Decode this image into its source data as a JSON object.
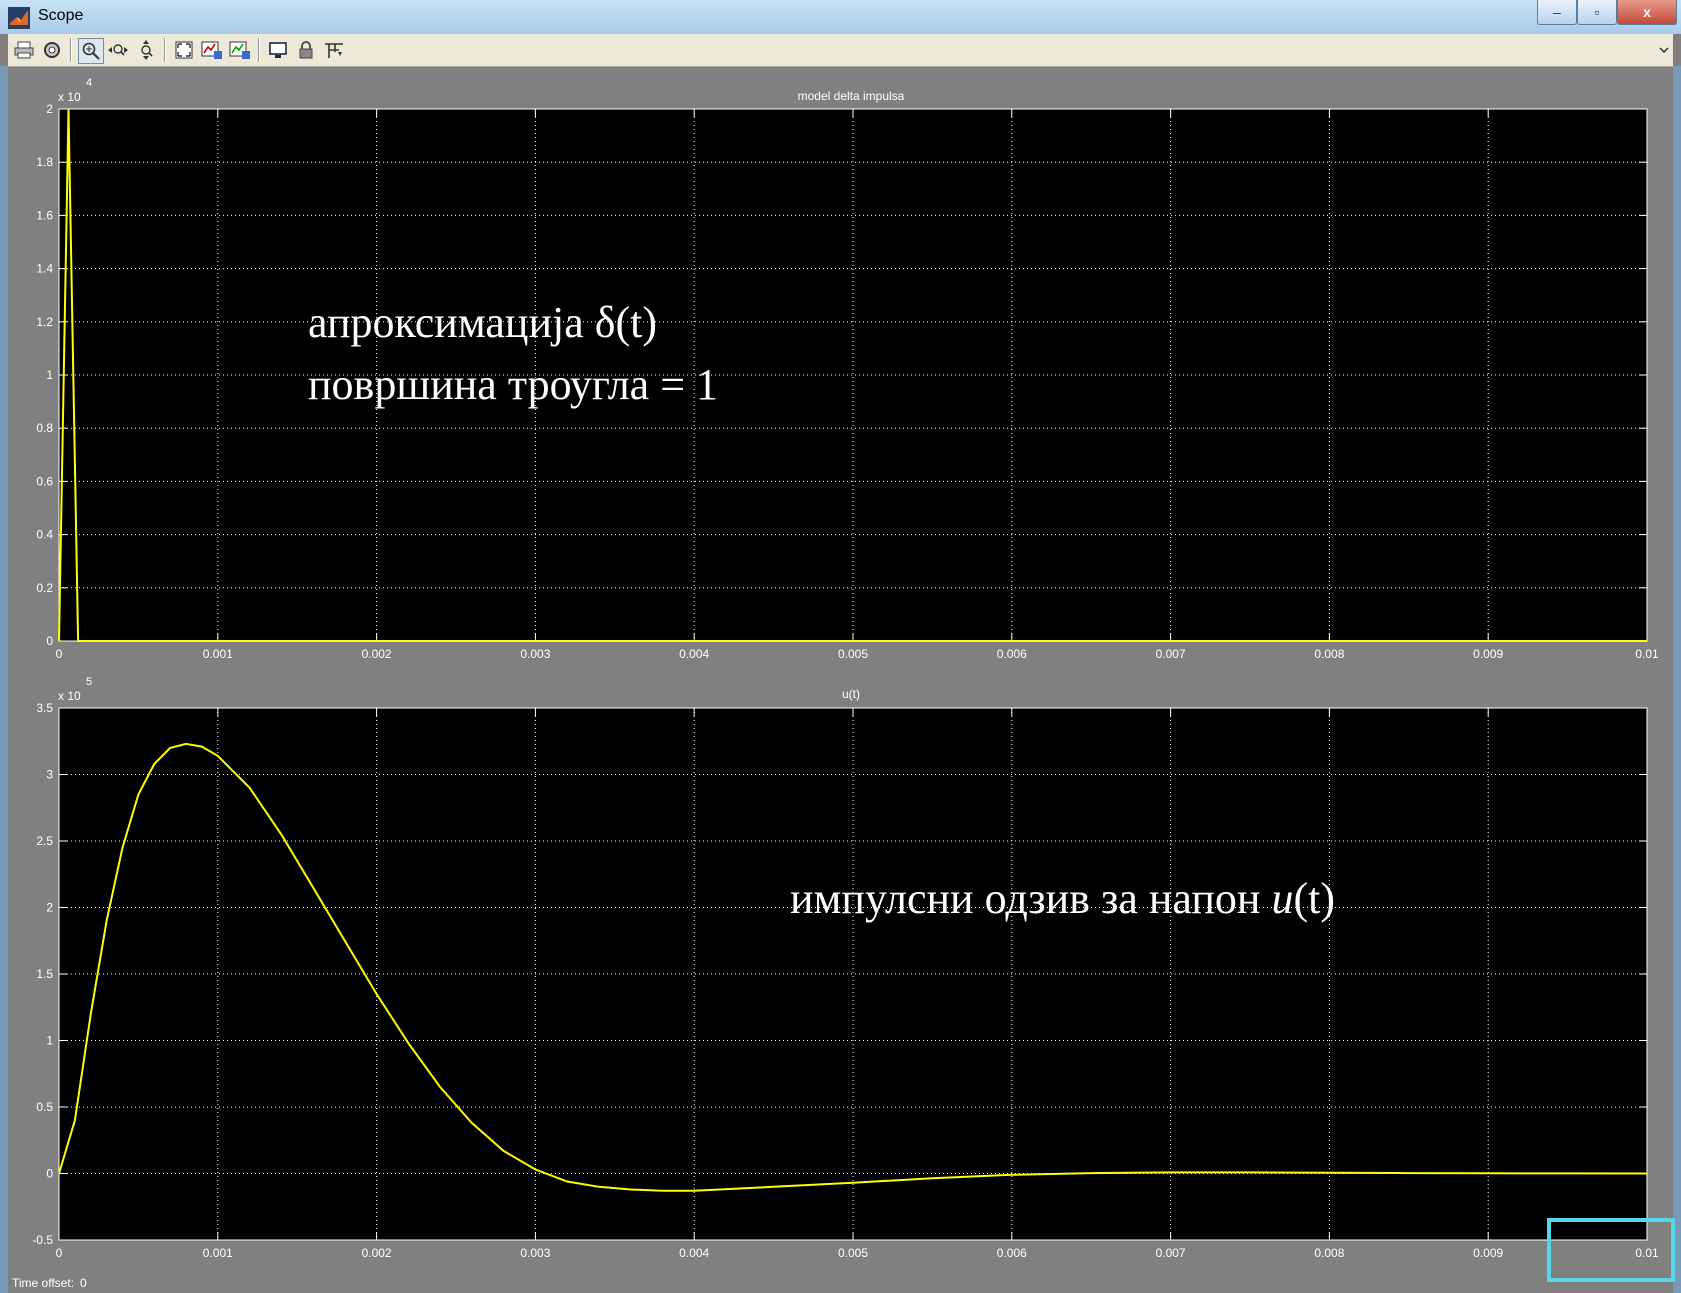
{
  "window": {
    "title": "Scope",
    "title_color": "#000000",
    "min": "–",
    "max": "▫",
    "close": "x"
  },
  "toolbar": {
    "icons": [
      "print-icon",
      "parameters-icon",
      "zoom-icon",
      "zoom-x-icon",
      "zoom-y-icon",
      "autoscale-icon",
      "save-axes-icon",
      "restore-axes-icon",
      "floating-scope-icon",
      "lock-axes-icon",
      "signal-selector-icon"
    ]
  },
  "plots": [
    {
      "title": "model delta impulsa",
      "exponent_base": "x 10",
      "exponent": "4",
      "xticks": [
        "0",
        "0.001",
        "0.002",
        "0.003",
        "0.004",
        "0.005",
        "0.006",
        "0.007",
        "0.008",
        "0.009",
        "0.01"
      ],
      "yticks": [
        "0",
        "0.2",
        "0.4",
        "0.6",
        "0.8",
        "1",
        "1.2",
        "1.4",
        "1.6",
        "1.8",
        "2"
      ],
      "annotation_line1": "апроксимација δ(t)",
      "annotation_line2": "површина троугла = 1"
    },
    {
      "title": "u(t)",
      "exponent_base": "x 10",
      "exponent": "5",
      "xticks": [
        "0",
        "0.001",
        "0.002",
        "0.003",
        "0.004",
        "0.005",
        "0.006",
        "0.007",
        "0.008",
        "0.009",
        "0.01"
      ],
      "yticks": [
        "-0.5",
        "0",
        "0.5",
        "1",
        "1.5",
        "2",
        "2.5",
        "3",
        "3.5"
      ],
      "annotation_prefix": "импулсни одзив за напон ",
      "annotation_var": "u",
      "annotation_suffix": "(t)"
    }
  ],
  "chart_data": [
    {
      "type": "line",
      "title": "model delta impulsa",
      "x": [
        0,
        6e-05,
        0.00012
      ],
      "y": [
        0,
        20000,
        0
      ],
      "xlim": [
        0,
        0.01
      ],
      "ylim": [
        0,
        20000
      ],
      "y_scale_factor": "x 10^4",
      "grid": true,
      "line_color": "#ffff00",
      "background": "#000000"
    },
    {
      "type": "line",
      "title": "u(t)",
      "x": [
        0,
        0.0001,
        0.0002,
        0.0003,
        0.0004,
        0.0005,
        0.0006,
        0.0007,
        0.0008,
        0.0009,
        0.001,
        0.0012,
        0.0014,
        0.0016,
        0.0018,
        0.002,
        0.0022,
        0.0024,
        0.0026,
        0.0028,
        0.003,
        0.0032,
        0.0034,
        0.0036,
        0.0038,
        0.004,
        0.0045,
        0.005,
        0.0055,
        0.006,
        0.0065,
        0.007,
        0.0075,
        0.008,
        0.0085,
        0.009,
        0.0095,
        0.01
      ],
      "y": [
        0,
        40000,
        120000,
        190000,
        245000,
        285000,
        308000,
        320000,
        323000,
        321000,
        314000,
        290000,
        255000,
        215000,
        175000,
        135000,
        98000,
        65000,
        38000,
        17000,
        3000,
        -6000,
        -10000,
        -12000,
        -13000,
        -13000,
        -10000,
        -7000,
        -3500,
        -1000,
        300,
        800,
        800,
        600,
        300,
        150,
        50,
        0
      ],
      "xlim": [
        0,
        0.01
      ],
      "ylim": [
        -50000,
        350000
      ],
      "y_scale_factor": "x 10^5",
      "grid": true,
      "line_color": "#ffff00",
      "background": "#000000"
    }
  ],
  "status": {
    "label": "Time offset:",
    "value": "0"
  }
}
